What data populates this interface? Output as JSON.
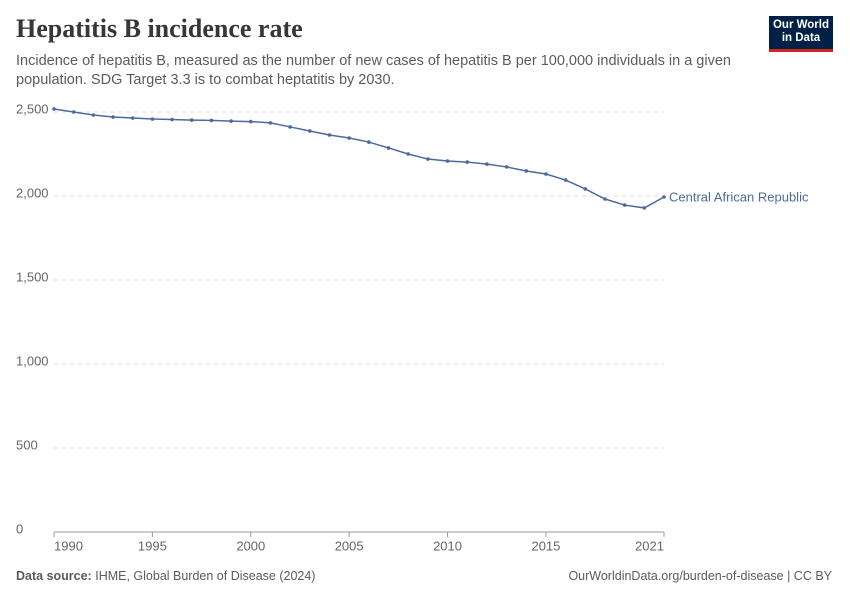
{
  "logo": [
    "Our World",
    "in Data"
  ],
  "chart_data": {
    "type": "line",
    "title": "Hepatitis B incidence rate",
    "subtitle": "Incidence of hepatitis B, measured as the number of new cases of hepatitis B per 100,000 individuals in a given population. SDG Target 3.3 is to combat heptatitis by 2030.",
    "source_label": "Data source:",
    "source": "IHME, Global Burden of Disease (2024)",
    "url": "OurWorldinData.org/burden-of-disease | CC BY",
    "x": [
      1990,
      1991,
      1992,
      1993,
      1994,
      1995,
      1996,
      1997,
      1998,
      1999,
      2000,
      2001,
      2002,
      2003,
      2004,
      2005,
      2006,
      2007,
      2008,
      2009,
      2010,
      2011,
      2012,
      2013,
      2014,
      2015,
      2016,
      2017,
      2018,
      2019,
      2020,
      2021
    ],
    "series": [
      {
        "name": "Central African Republic",
        "color": "#4c6a9c",
        "values": [
          2518,
          2500,
          2482,
          2470,
          2464,
          2458,
          2455,
          2452,
          2450,
          2446,
          2443,
          2435,
          2411,
          2387,
          2363,
          2345,
          2321,
          2286,
          2250,
          2220,
          2208,
          2202,
          2190,
          2173,
          2149,
          2131,
          2095,
          2042,
          1982,
          1946,
          1929,
          1994
        ]
      }
    ],
    "xlim": [
      1990,
      2021
    ],
    "xticks": [
      1990,
      1995,
      2000,
      2005,
      2010,
      2015,
      2021
    ],
    "ylim": [
      0,
      2500
    ],
    "yticks": [
      0,
      500,
      {
        "value": 1000,
        "label": "1,000"
      },
      {
        "value": 1500,
        "label": "1,500"
      },
      {
        "value": 2000,
        "label": "2,000"
      },
      {
        "value": 2500,
        "label": "2,500"
      }
    ],
    "grid": true
  }
}
